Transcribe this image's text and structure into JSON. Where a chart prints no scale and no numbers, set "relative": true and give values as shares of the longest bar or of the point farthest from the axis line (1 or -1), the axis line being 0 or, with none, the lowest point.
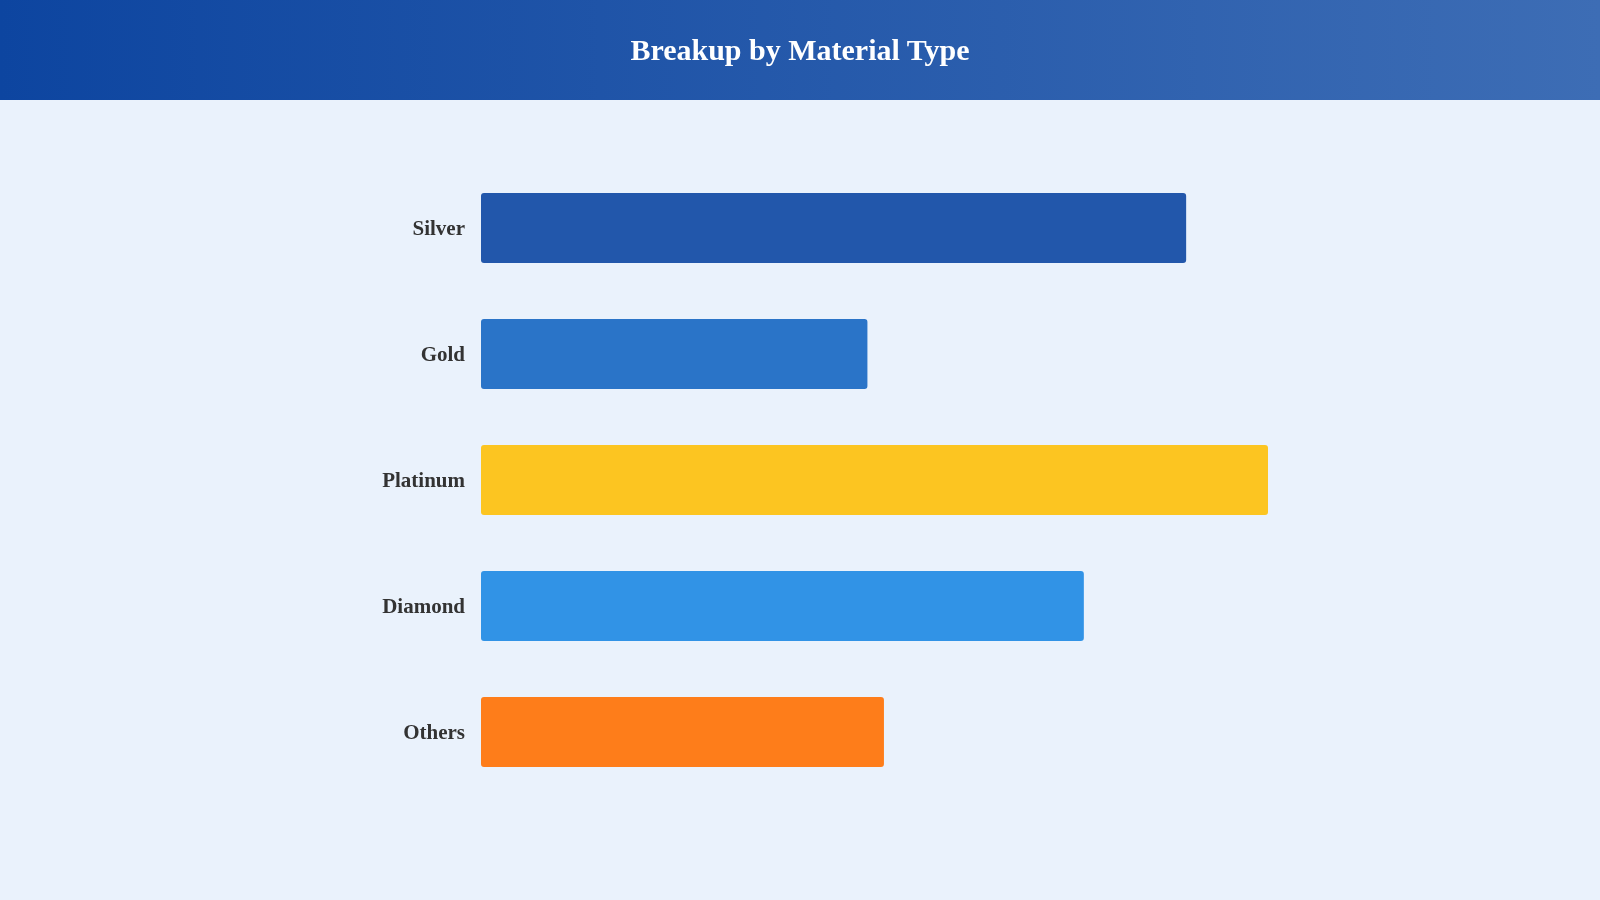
{
  "chart_data": {
    "type": "bar",
    "title": "Breakup by Material Type",
    "orientation": "horizontal",
    "relative": true,
    "categories": [
      "Silver",
      "Gold",
      "Platinum",
      "Diamond",
      "Others"
    ],
    "values": [
      0.896,
      0.491,
      1,
      0.766,
      0.512
    ],
    "colors": [
      "#2257ab",
      "#2a74c8",
      "#fcc521",
      "#3193e6",
      "#fe7d1a"
    ]
  }
}
